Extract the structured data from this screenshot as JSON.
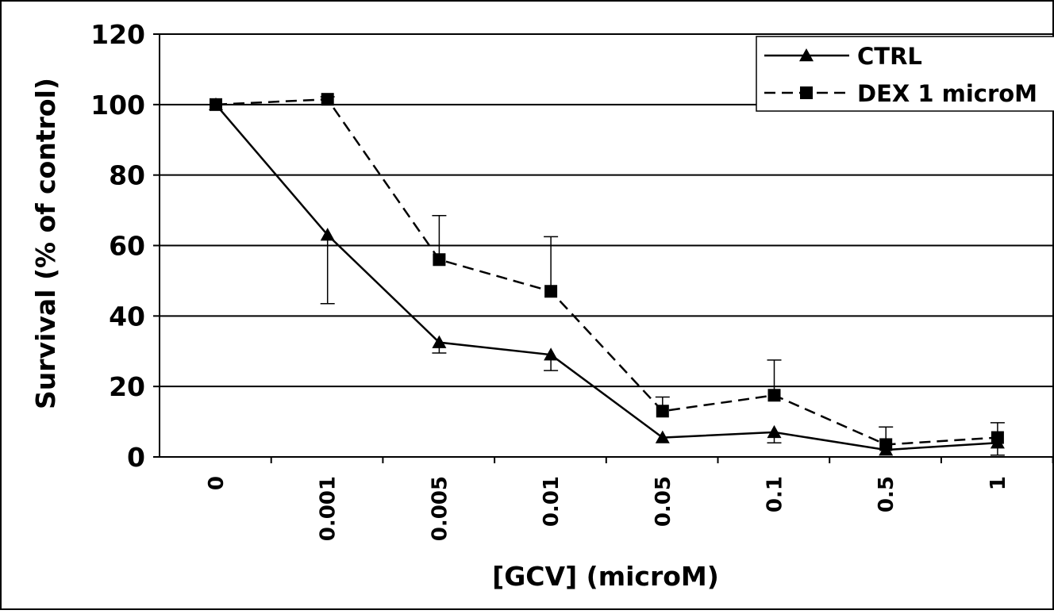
{
  "chart_data": {
    "type": "line",
    "title": "",
    "xlabel": "[GCV] (microM)",
    "ylabel": "Survival (% of control)",
    "categories": [
      "0",
      "0.001",
      "0.005",
      "0.01",
      "0.05",
      "0.1",
      "0.5",
      "1"
    ],
    "yticks": [
      "0",
      "20",
      "40",
      "60",
      "80",
      "100",
      "120"
    ],
    "ylim": [
      0,
      120
    ],
    "grid": true,
    "legend_position": "top-right",
    "series": [
      {
        "name": "CTRL",
        "marker": "triangle",
        "line": "solid",
        "values": [
          100,
          63,
          32.5,
          29,
          5.5,
          7,
          2,
          4
        ],
        "error_plus": [
          0,
          0,
          0,
          0,
          0,
          0,
          0,
          0
        ],
        "error_minus": [
          0,
          19.5,
          3,
          4.5,
          0,
          3,
          0,
          3.5
        ]
      },
      {
        "name": "DEX 1 microM",
        "marker": "square",
        "line": "dashed",
        "values": [
          100,
          101.5,
          56,
          47,
          13,
          17.5,
          3.5,
          5.5
        ],
        "error_plus": [
          0,
          0.7,
          12.5,
          15.5,
          4,
          10,
          5,
          4.2
        ],
        "error_minus": [
          0,
          0,
          0,
          0,
          0,
          0,
          0,
          0
        ]
      }
    ],
    "colors": {
      "line": "#000000",
      "background": "#ffffff",
      "grid": "#000000"
    }
  }
}
